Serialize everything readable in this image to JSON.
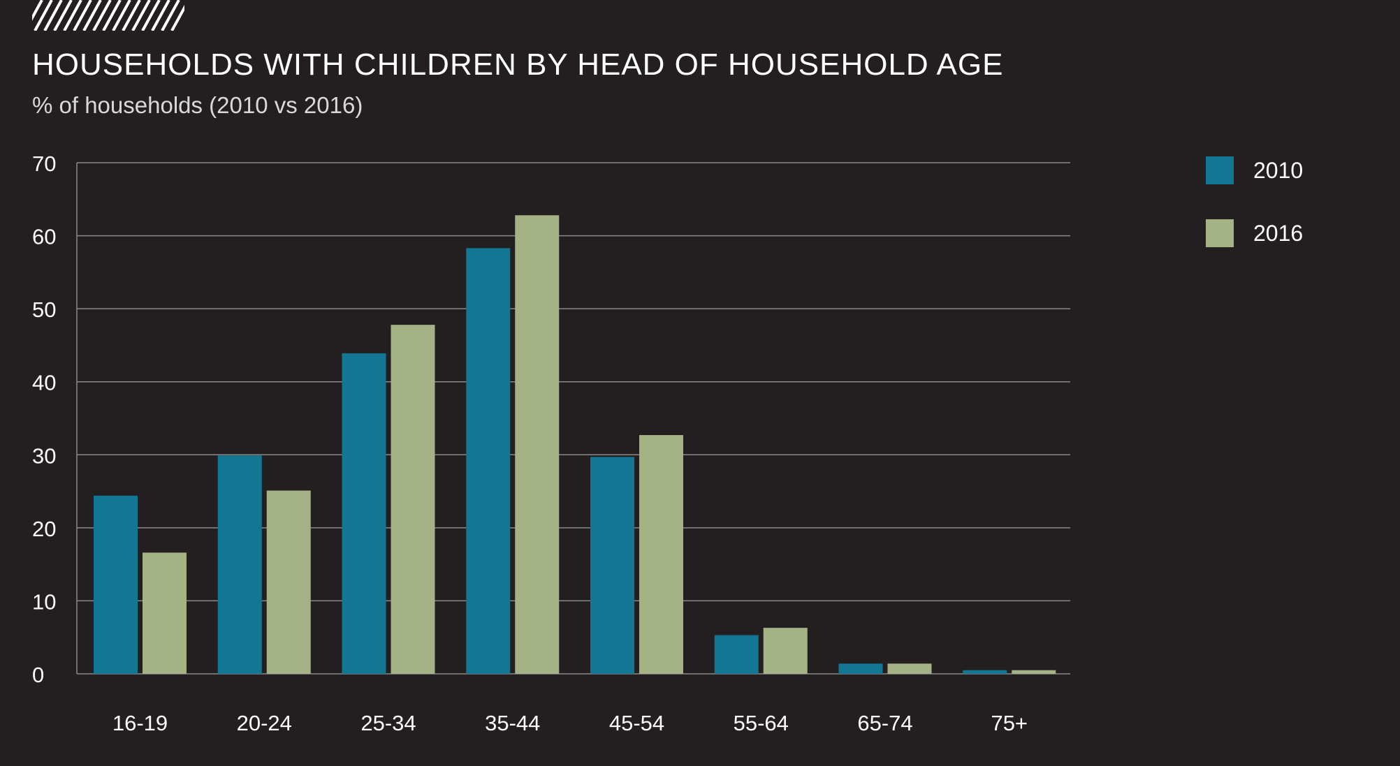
{
  "header": {
    "title": "HOUSEHOLDS WITH CHILDREN BY HEAD OF HOUSEHOLD AGE",
    "subtitle": "% of households (2010 vs 2016)"
  },
  "colors": {
    "background": "#231f20",
    "series_2010": "#137793",
    "series_2016": "#a4b286",
    "gridline": "#8a8a8a",
    "text": "#ffffff"
  },
  "legend": {
    "items": [
      {
        "label": "2010",
        "color": "#137793"
      },
      {
        "label": "2016",
        "color": "#a4b286"
      }
    ]
  },
  "chart_data": {
    "type": "bar",
    "title": "HOUSEHOLDS WITH CHILDREN BY HEAD OF HOUSEHOLD AGE",
    "subtitle": "% of households (2010 vs 2016)",
    "xlabel": "",
    "ylabel": "",
    "ylim": [
      0,
      70
    ],
    "yticks": [
      0,
      10,
      20,
      30,
      40,
      50,
      60,
      70
    ],
    "grid": true,
    "legend_position": "top-right",
    "categories": [
      "16-19",
      "20-24",
      "25-34",
      "35-44",
      "45-54",
      "55-64",
      "65-74",
      "75+"
    ],
    "series": [
      {
        "name": "2010",
        "color": "#137793",
        "values": [
          24.4,
          29.9,
          43.9,
          58.3,
          29.7,
          5.3,
          1.4,
          0.5
        ]
      },
      {
        "name": "2016",
        "color": "#a4b286",
        "values": [
          16.6,
          25.1,
          47.8,
          62.8,
          32.7,
          6.3,
          1.4,
          0.5
        ]
      }
    ]
  }
}
